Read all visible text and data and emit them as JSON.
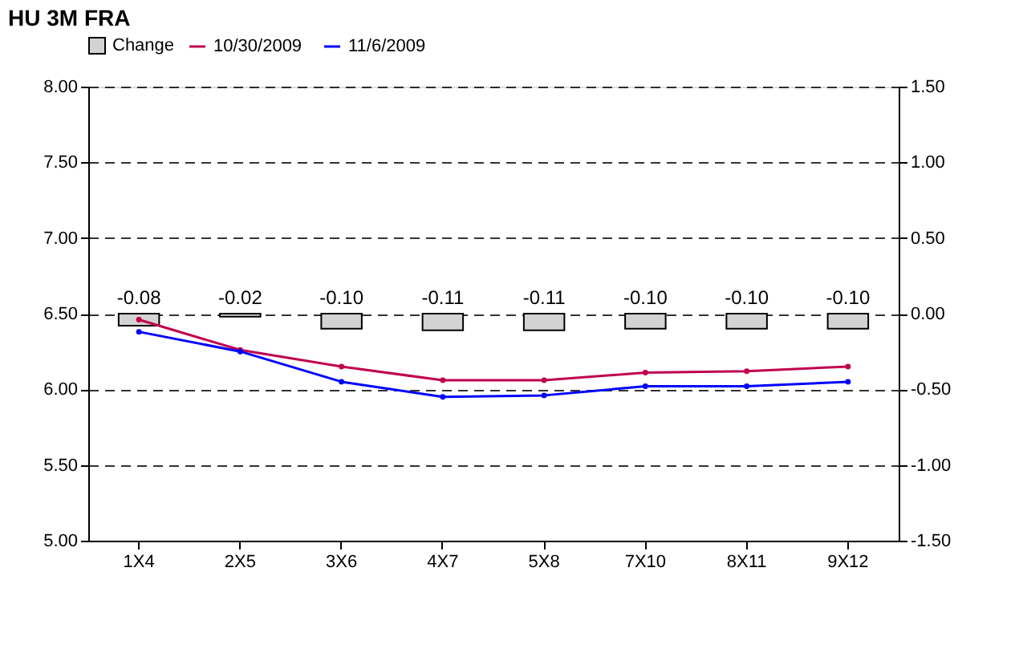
{
  "chart_data": {
    "type": "bar",
    "title": "HU 3M FRA",
    "categories": [
      "1X4",
      "2X5",
      "3X6",
      "4X7",
      "5X8",
      "7X10",
      "8X11",
      "9X12"
    ],
    "series": [
      {
        "name": "Change",
        "axis": "y2",
        "color": "#d3d3d3",
        "values": [
          -0.08,
          -0.02,
          -0.1,
          -0.11,
          -0.11,
          -0.1,
          -0.1,
          -0.1
        ],
        "value_labels": [
          "-0.08",
          "-0.02",
          "-0.10",
          "-0.11",
          "-0.11",
          "-0.10",
          "-0.10",
          "-0.10"
        ]
      },
      {
        "name": "10/30/2009",
        "type": "line",
        "color": "#c0004f",
        "values": [
          6.46,
          6.26,
          6.15,
          6.06,
          6.06,
          6.11,
          6.12,
          6.15
        ]
      },
      {
        "name": "11/6/2009",
        "type": "line",
        "color": "#0000ff",
        "values": [
          6.38,
          6.25,
          6.05,
          5.95,
          5.96,
          6.02,
          6.02,
          6.05
        ]
      }
    ],
    "ylim": [
      5.0,
      8.0
    ],
    "yticks": [
      {
        "value": 5.0,
        "label": "5.00"
      },
      {
        "value": 5.5,
        "label": "5.50"
      },
      {
        "value": 6.0,
        "label": "6.00"
      },
      {
        "value": 6.5,
        "label": "6.50"
      },
      {
        "value": 7.0,
        "label": "7.00"
      },
      {
        "value": 7.5,
        "label": "7.50"
      },
      {
        "value": 8.0,
        "label": "8.00"
      }
    ],
    "y2lim": [
      -1.5,
      1.5
    ],
    "y2ticks": [
      {
        "value": -1.5,
        "label": "-1.50"
      },
      {
        "value": -1.0,
        "label": "-1.00"
      },
      {
        "value": -0.5,
        "label": "-0.50"
      },
      {
        "value": 0.0,
        "label": "0.00"
      },
      {
        "value": 0.5,
        "label": "0.50"
      },
      {
        "value": 1.0,
        "label": "1.00"
      },
      {
        "value": 1.5,
        "label": "1.50"
      }
    ],
    "grid": "y",
    "legend": "top",
    "marker": "circle",
    "line_style": "solid"
  }
}
